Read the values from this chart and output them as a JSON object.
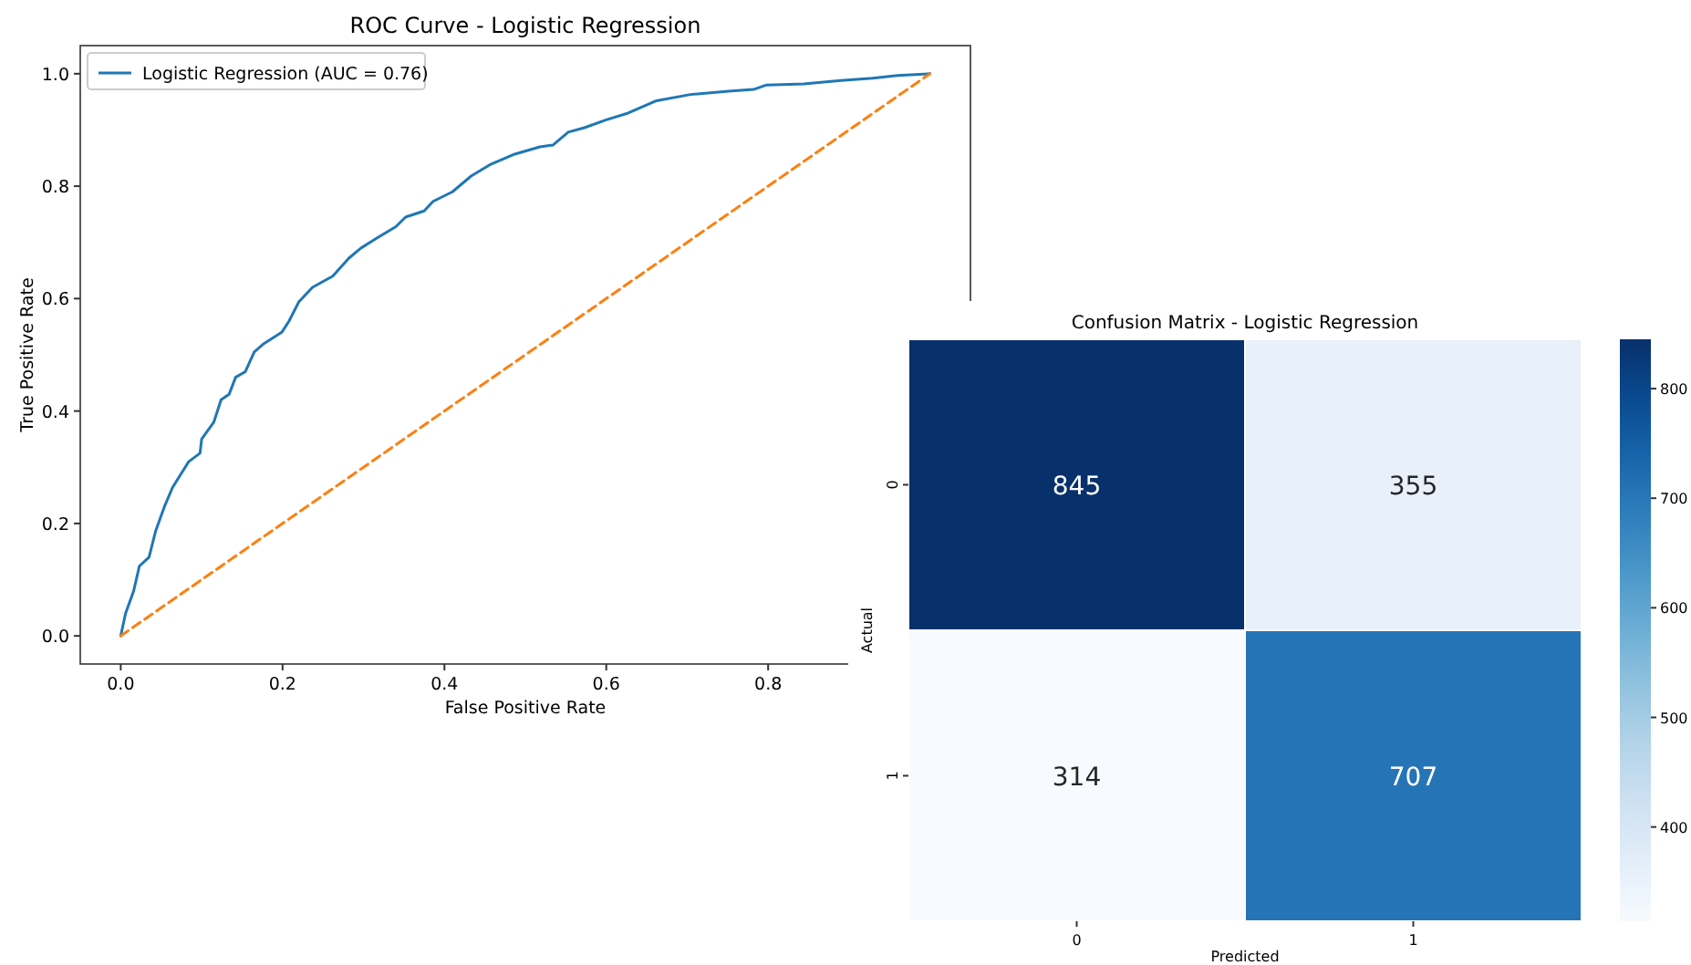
{
  "chart_data": [
    {
      "type": "line",
      "title": "ROC Curve - Logistic Regression",
      "xlabel": "False Positive Rate",
      "ylabel": "True Positive Rate",
      "xlim": [
        -0.05,
        1.05
      ],
      "ylim": [
        -0.05,
        1.05
      ],
      "xticks": [
        {
          "value": 0,
          "label": "0.0"
        },
        {
          "value": 0.2,
          "label": "0.2"
        },
        {
          "value": 0.4,
          "label": "0.4"
        },
        {
          "value": 0.6,
          "label": "0.6"
        },
        {
          "value": 0.8,
          "label": "0.8"
        }
      ],
      "yticks": [
        {
          "value": 0,
          "label": "0.0"
        },
        {
          "value": 0.2,
          "label": "0.2"
        },
        {
          "value": 0.4,
          "label": "0.4"
        },
        {
          "value": 0.6,
          "label": "0.6"
        },
        {
          "value": 0.8,
          "label": "0.8"
        },
        {
          "value": 1,
          "label": "1.0"
        }
      ],
      "legend": "top left",
      "series": [
        {
          "name": "Logistic Regression (AUC = 0.76)",
          "color": "#1f77b4",
          "line_style": "solid",
          "x": [
            0,
            0.006,
            0.016,
            0.023,
            0.035,
            0.043,
            0.054,
            0.064,
            0.084,
            0.098,
            0.1,
            0.115,
            0.124,
            0.134,
            0.142,
            0.154,
            0.165,
            0.177,
            0.199,
            0.208,
            0.22,
            0.237,
            0.262,
            0.282,
            0.297,
            0.317,
            0.34,
            0.352,
            0.375,
            0.386,
            0.41,
            0.433,
            0.456,
            0.487,
            0.518,
            0.534,
            0.553,
            0.573,
            0.6,
            0.627,
            0.662,
            0.704,
            0.751,
            0.782,
            0.798,
            0.844,
            0.89,
            0.929,
            0.96,
            1.0
          ],
          "values": [
            0,
            0.04,
            0.08,
            0.124,
            0.14,
            0.186,
            0.23,
            0.264,
            0.31,
            0.325,
            0.35,
            0.38,
            0.42,
            0.43,
            0.46,
            0.47,
            0.505,
            0.52,
            0.54,
            0.56,
            0.594,
            0.62,
            0.64,
            0.672,
            0.69,
            0.708,
            0.728,
            0.745,
            0.756,
            0.773,
            0.79,
            0.818,
            0.838,
            0.857,
            0.87,
            0.873,
            0.896,
            0.904,
            0.918,
            0.93,
            0.952,
            0.963,
            0.969,
            0.972,
            0.98,
            0.982,
            0.988,
            0.992,
            0.997,
            1.0
          ]
        },
        {
          "color": "#ff7f0e",
          "line_style": "dashed",
          "x": [
            0,
            1
          ],
          "values": [
            0,
            1
          ]
        }
      ]
    },
    {
      "type": "heatmap",
      "title": "Confusion Matrix - Logistic Regression",
      "xlabel": "Predicted",
      "ylabel": "Actual",
      "categories": [
        "0",
        "1"
      ],
      "y_categories": [
        "0",
        "1"
      ],
      "cells": [
        [
          845,
          355
        ],
        [
          314,
          707
        ]
      ],
      "data_labels": true,
      "clim": [
        314,
        845
      ],
      "cticks": [
        400,
        500,
        600,
        700,
        800
      ]
    }
  ]
}
